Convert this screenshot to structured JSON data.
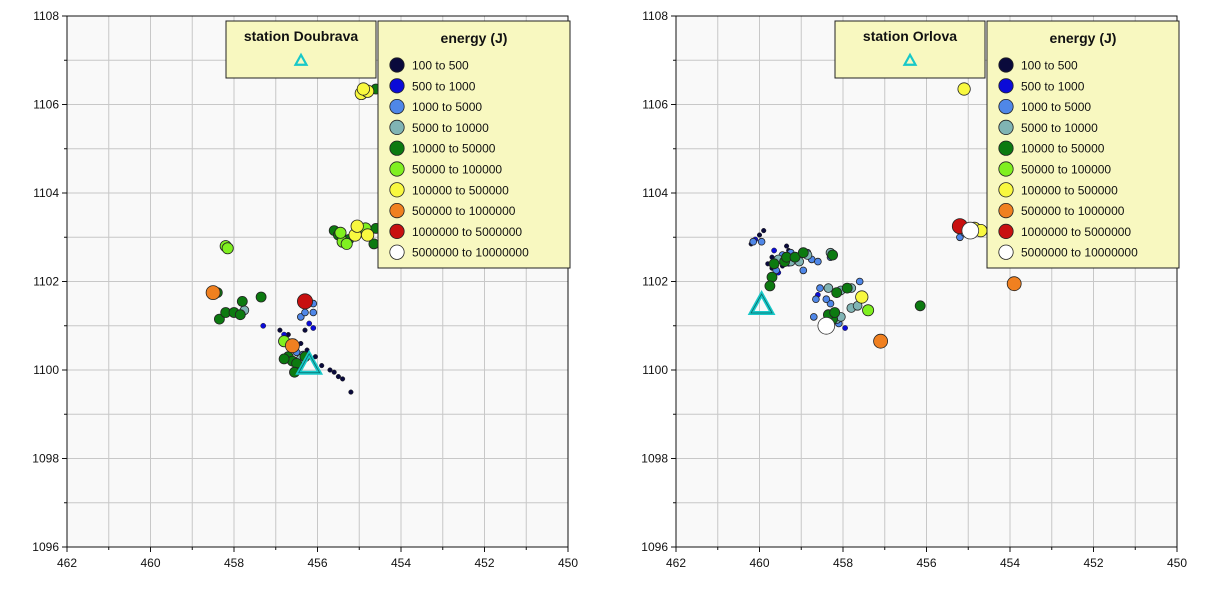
{
  "chart_data": [
    {
      "type": "scatter",
      "title": "",
      "xlabel": "",
      "ylabel": "",
      "xlim": [
        462,
        450
      ],
      "ylim": [
        1108,
        1096
      ],
      "x_reversed": true,
      "y_reversed": true,
      "grid": true,
      "xticks": [
        "462",
        "460",
        "458",
        "456",
        "454",
        "452",
        "450"
      ],
      "yticks": [
        "1096",
        "1098",
        "1100",
        "1102",
        "1104",
        "1106",
        "1108"
      ],
      "station_legend": {
        "label": "station Doubrava",
        "symbol": "triangle"
      },
      "station": {
        "x": 456.2,
        "y": 1100.1
      },
      "energy_legend": {
        "title": "energy (J)",
        "placement": "top-right",
        "classes": [
          {
            "label": "100 to 500",
            "color": "#0a0a3c"
          },
          {
            "label": "500 to 1000",
            "color": "#0b0bd8"
          },
          {
            "label": "1000 to 5000",
            "color": "#4f87e8"
          },
          {
            "label": "5000 to 10000",
            "color": "#80b4b4"
          },
          {
            "label": "10000 to 50000",
            "color": "#0c7a10"
          },
          {
            "label": "50000 to 100000",
            "color": "#80f020"
          },
          {
            "label": "100000 to 500000",
            "color": "#f8f840"
          },
          {
            "label": "500000 to 1000000",
            "color": "#f08020"
          },
          {
            "label": "1000000 to 5000000",
            "color": "#c81010"
          },
          {
            "label": "5000000 to 10000000",
            "color": "#ffffff"
          }
        ]
      },
      "points": [
        [
          455.2,
          1099.5,
          0
        ],
        [
          455.4,
          1099.8,
          0
        ],
        [
          455.5,
          1099.85,
          0
        ],
        [
          455.6,
          1099.95,
          0
        ],
        [
          455.7,
          1100.0,
          0
        ],
        [
          455.9,
          1100.1,
          0
        ],
        [
          456.05,
          1100.3,
          0
        ],
        [
          456.25,
          1100.45,
          0
        ],
        [
          456.4,
          1100.6,
          0
        ],
        [
          456.55,
          1100.65,
          0
        ],
        [
          456.7,
          1100.8,
          0
        ],
        [
          456.3,
          1100.9,
          0
        ],
        [
          456.1,
          1100.95,
          1
        ],
        [
          456.2,
          1101.05,
          1
        ],
        [
          457.3,
          1101.0,
          1
        ],
        [
          456.8,
          1100.8,
          1
        ],
        [
          456.9,
          1100.9,
          0
        ],
        [
          456.4,
          1101.2,
          2
        ],
        [
          456.3,
          1101.3,
          2
        ],
        [
          456.1,
          1101.3,
          2
        ],
        [
          456.2,
          1101.55,
          2
        ],
        [
          456.1,
          1101.5,
          2
        ],
        [
          456.5,
          1100.4,
          2
        ],
        [
          456.35,
          1100.35,
          2
        ],
        [
          456.65,
          1100.5,
          2
        ],
        [
          456.45,
          1100.2,
          2
        ],
        [
          456.7,
          1100.3,
          4
        ],
        [
          456.6,
          1100.2,
          4
        ],
        [
          456.5,
          1100.15,
          4
        ],
        [
          456.3,
          1100.3,
          4
        ],
        [
          456.55,
          1099.95,
          4
        ],
        [
          456.4,
          1100.25,
          3
        ],
        [
          456.8,
          1100.25,
          4
        ],
        [
          456.8,
          1100.65,
          5
        ],
        [
          456.6,
          1100.55,
          7
        ],
        [
          456.3,
          1101.55,
          8
        ],
        [
          458.35,
          1101.15,
          4
        ],
        [
          458.2,
          1101.3,
          4
        ],
        [
          458.0,
          1101.3,
          4
        ],
        [
          457.85,
          1101.25,
          4
        ],
        [
          457.75,
          1101.35,
          3
        ],
        [
          457.8,
          1101.55,
          4
        ],
        [
          457.35,
          1101.65,
          4
        ],
        [
          458.4,
          1101.75,
          4
        ],
        [
          458.5,
          1101.75,
          7
        ],
        [
          458.2,
          1102.8,
          5
        ],
        [
          458.15,
          1102.75,
          5
        ],
        [
          455.4,
          1102.9,
          5
        ],
        [
          455.3,
          1102.85,
          5
        ],
        [
          455.45,
          1103.1,
          5
        ],
        [
          455.6,
          1103.15,
          4
        ],
        [
          455.1,
          1103.05,
          6
        ],
        [
          455.05,
          1103.25,
          6
        ],
        [
          454.8,
          1103.05,
          6
        ],
        [
          454.85,
          1103.2,
          5
        ],
        [
          454.65,
          1102.85,
          4
        ],
        [
          454.6,
          1103.2,
          4
        ],
        [
          455.25,
          1102.95,
          4
        ],
        [
          455.5,
          1103.05,
          4
        ],
        [
          454.1,
          1104.5,
          5
        ],
        [
          454.0,
          1104.6,
          4
        ],
        [
          454.15,
          1104.8,
          4
        ],
        [
          454.25,
          1105.3,
          6
        ],
        [
          454.25,
          1105.35,
          7
        ],
        [
          454.95,
          1106.25,
          6
        ],
        [
          454.8,
          1106.3,
          6
        ],
        [
          454.9,
          1106.35,
          6
        ],
        [
          454.6,
          1106.35,
          4
        ],
        [
          451.9,
          1105.95,
          4
        ],
        [
          450.6,
          1106.55,
          7
        ],
        [
          450.5,
          1106.6,
          6
        ],
        [
          450.55,
          1106.8,
          5
        ],
        [
          450.45,
          1106.6,
          6
        ],
        [
          450.5,
          1106.75,
          4
        ],
        [
          450.6,
          1106.9,
          6
        ],
        [
          450.55,
          1107.1,
          8
        ]
      ]
    },
    {
      "type": "scatter",
      "title": "",
      "xlabel": "",
      "ylabel": "",
      "xlim": [
        462,
        450
      ],
      "ylim": [
        1108,
        1096
      ],
      "x_reversed": true,
      "y_reversed": true,
      "grid": true,
      "xticks": [
        "462",
        "460",
        "458",
        "456",
        "454",
        "452",
        "450"
      ],
      "yticks": [
        "1096",
        "1098",
        "1100",
        "1102",
        "1104",
        "1106",
        "1108"
      ],
      "station_legend": {
        "label": "station Orlova",
        "symbol": "triangle"
      },
      "station": {
        "x": 459.95,
        "y": 1101.45
      },
      "energy_legend": {
        "title": "energy (J)",
        "placement": "top-right",
        "classes": [
          {
            "label": "100 to 500",
            "color": "#0a0a3c"
          },
          {
            "label": "500 to 1000",
            "color": "#0b0bd8"
          },
          {
            "label": "1000 to 5000",
            "color": "#4f87e8"
          },
          {
            "label": "5000 to 10000",
            "color": "#80b4b4"
          },
          {
            "label": "10000 to 50000",
            "color": "#0c7a10"
          },
          {
            "label": "50000 to 100000",
            "color": "#80f020"
          },
          {
            "label": "100000 to 500000",
            "color": "#f8f840"
          },
          {
            "label": "500000 to 1000000",
            "color": "#f08020"
          },
          {
            "label": "1000000 to 5000000",
            "color": "#c81010"
          },
          {
            "label": "5000000 to 10000000",
            "color": "#ffffff"
          }
        ]
      },
      "points": [
        [
          460.2,
          1102.85,
          0
        ],
        [
          460.1,
          1102.95,
          1
        ],
        [
          460.0,
          1103.05,
          0
        ],
        [
          459.95,
          1102.9,
          2
        ],
        [
          459.9,
          1103.15,
          0
        ],
        [
          460.15,
          1102.9,
          2
        ],
        [
          459.8,
          1102.4,
          0
        ],
        [
          459.7,
          1102.55,
          0
        ],
        [
          459.6,
          1102.5,
          1
        ],
        [
          459.5,
          1102.45,
          0
        ],
        [
          459.4,
          1102.6,
          1
        ],
        [
          459.3,
          1102.7,
          0
        ],
        [
          459.55,
          1102.2,
          1
        ],
        [
          459.45,
          1102.35,
          0
        ],
        [
          459.3,
          1102.4,
          1
        ],
        [
          459.2,
          1102.5,
          0
        ],
        [
          459.1,
          1102.45,
          1
        ],
        [
          459.7,
          1102.3,
          0
        ],
        [
          459.35,
          1102.8,
          0
        ],
        [
          459.65,
          1102.7,
          1
        ],
        [
          459.7,
          1102.1,
          4
        ],
        [
          459.65,
          1102.4,
          4
        ],
        [
          459.55,
          1102.5,
          3
        ],
        [
          459.4,
          1102.45,
          4
        ],
        [
          459.35,
          1102.55,
          4
        ],
        [
          459.25,
          1102.45,
          3
        ],
        [
          459.15,
          1102.55,
          4
        ],
        [
          459.05,
          1102.45,
          3
        ],
        [
          458.95,
          1102.65,
          4
        ],
        [
          459.75,
          1101.9,
          4
        ],
        [
          459.6,
          1102.25,
          2
        ],
        [
          459.45,
          1102.6,
          2
        ],
        [
          459.25,
          1102.65,
          2
        ],
        [
          458.85,
          1102.65,
          2
        ],
        [
          458.85,
          1102.6,
          3
        ],
        [
          458.75,
          1102.5,
          2
        ],
        [
          458.6,
          1102.45,
          2
        ],
        [
          458.95,
          1102.25,
          2
        ],
        [
          458.4,
          1101.0,
          9
        ],
        [
          458.3,
          1101.05,
          3
        ],
        [
          458.25,
          1101.15,
          4
        ],
        [
          458.35,
          1101.25,
          4
        ],
        [
          458.2,
          1101.3,
          4
        ],
        [
          458.15,
          1101.15,
          3
        ],
        [
          458.3,
          1101.5,
          2
        ],
        [
          458.05,
          1101.2,
          3
        ],
        [
          458.1,
          1101.05,
          2
        ],
        [
          457.95,
          1100.95,
          1
        ],
        [
          458.7,
          1101.2,
          2
        ],
        [
          458.65,
          1101.6,
          2
        ],
        [
          458.4,
          1101.6,
          2
        ],
        [
          458.55,
          1101.85,
          2
        ],
        [
          458.35,
          1101.85,
          3
        ],
        [
          458.6,
          1101.7,
          1
        ],
        [
          458.15,
          1101.75,
          4
        ],
        [
          458.05,
          1101.8,
          3
        ],
        [
          457.9,
          1101.85,
          4
        ],
        [
          457.8,
          1101.85,
          3
        ],
        [
          458.25,
          1102.6,
          4
        ],
        [
          458.3,
          1102.65,
          3
        ],
        [
          458.3,
          1102.55,
          2
        ],
        [
          457.8,
          1101.4,
          3
        ],
        [
          457.65,
          1101.45,
          3
        ],
        [
          457.55,
          1101.65,
          6
        ],
        [
          457.4,
          1101.35,
          5
        ],
        [
          457.6,
          1102.0,
          2
        ],
        [
          457.1,
          1100.65,
          7
        ],
        [
          456.15,
          1101.45,
          4
        ],
        [
          453.9,
          1101.95,
          7
        ],
        [
          452.2,
          1103.35,
          7
        ],
        [
          455.2,
          1103.0,
          2
        ],
        [
          455.1,
          1103.1,
          2
        ],
        [
          455.2,
          1103.25,
          8
        ],
        [
          454.95,
          1103.15,
          9
        ],
        [
          454.85,
          1103.2,
          6
        ],
        [
          454.7,
          1103.15,
          6
        ],
        [
          455.1,
          1106.35,
          6
        ]
      ]
    }
  ]
}
